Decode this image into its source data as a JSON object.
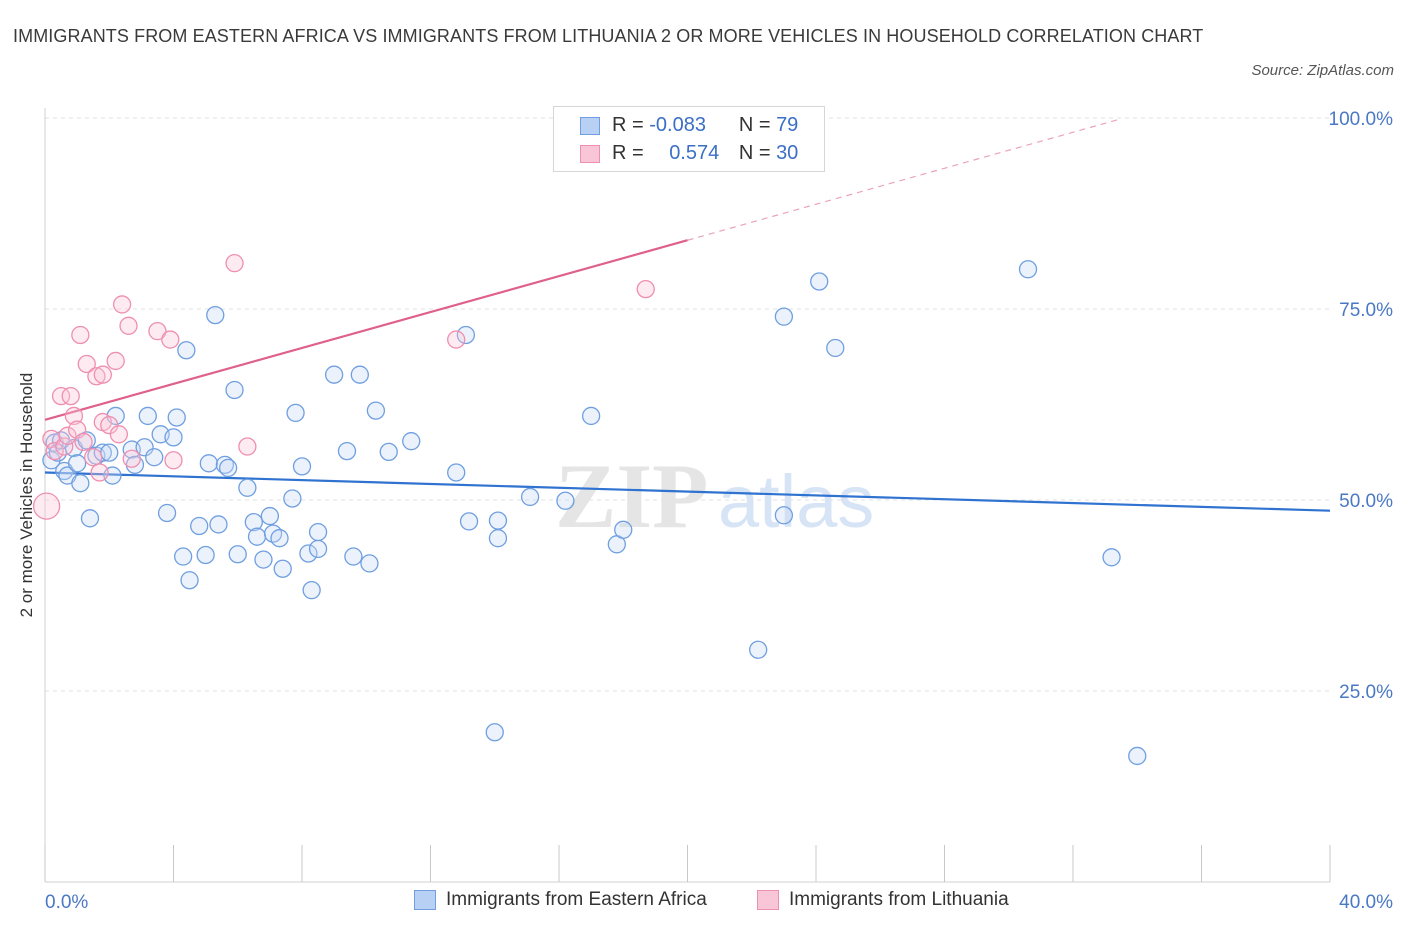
{
  "title": "IMMIGRANTS FROM EASTERN AFRICA VS IMMIGRANTS FROM LITHUANIA 2 OR MORE VEHICLES IN HOUSEHOLD CORRELATION CHART",
  "source": "Source: ZipAtlas.com",
  "watermark": {
    "zip": "ZIP",
    "atlas": "atlas"
  },
  "legend": {
    "series1": {
      "r_label": "R =",
      "r_value": "-0.083",
      "n_label": "N =",
      "n_value": "79"
    },
    "series2": {
      "r_label": "R =",
      "r_value": "0.574",
      "n_label": "N =",
      "n_value": "30"
    }
  },
  "chart_data": {
    "type": "scatter",
    "title": "IMMIGRANTS FROM EASTERN AFRICA VS IMMIGRANTS FROM LITHUANIA 2 OR MORE VEHICLES IN HOUSEHOLD CORRELATION CHART",
    "xlabel": "",
    "ylabel": "2 or more Vehicles in Household",
    "xlim": [
      0,
      40
    ],
    "ylim": [
      0,
      100
    ],
    "x_tick_labels": [
      "0.0%",
      "40.0%"
    ],
    "y_ticks": [
      25,
      50,
      75,
      100
    ],
    "y_tick_labels": [
      "25.0%",
      "50.0%",
      "75.0%",
      "100.0%"
    ],
    "grid": true,
    "legend_position": "top-center",
    "colors": {
      "eastern_africa": "#6f9fe0",
      "lithuania": "#ef8fb0",
      "blue_line": "#2f72d0",
      "pink_line": "#e0608c"
    },
    "series": [
      {
        "name": "Immigrants from Eastern Africa",
        "color": "#6f9fe0",
        "points": [
          [
            0.2,
            55.2
          ],
          [
            0.3,
            57.5
          ],
          [
            0.4,
            56.2
          ],
          [
            0.5,
            57.8
          ],
          [
            0.6,
            53.8
          ],
          [
            0.7,
            53.2
          ],
          [
            0.9,
            56.8
          ],
          [
            1.0,
            54.8
          ],
          [
            1.1,
            52.2
          ],
          [
            1.3,
            57.8
          ],
          [
            1.4,
            47.6
          ],
          [
            1.6,
            55.8
          ],
          [
            1.8,
            56.2
          ],
          [
            2.0,
            56.2
          ],
          [
            2.1,
            53.2
          ],
          [
            2.2,
            61.0
          ],
          [
            2.7,
            56.6
          ],
          [
            2.8,
            54.6
          ],
          [
            3.1,
            56.9
          ],
          [
            3.2,
            61.0
          ],
          [
            3.4,
            55.6
          ],
          [
            3.6,
            58.6
          ],
          [
            3.8,
            48.3
          ],
          [
            4.0,
            58.2
          ],
          [
            4.1,
            60.8
          ],
          [
            4.3,
            42.6
          ],
          [
            4.4,
            69.6
          ],
          [
            4.5,
            39.5
          ],
          [
            4.8,
            46.6
          ],
          [
            5.0,
            42.8
          ],
          [
            5.1,
            54.8
          ],
          [
            5.3,
            74.2
          ],
          [
            5.4,
            46.8
          ],
          [
            5.6,
            54.6
          ],
          [
            5.7,
            54.2
          ],
          [
            5.9,
            64.4
          ],
          [
            6.0,
            42.9
          ],
          [
            6.3,
            51.6
          ],
          [
            6.5,
            47.1
          ],
          [
            6.6,
            45.2
          ],
          [
            6.8,
            42.2
          ],
          [
            7.0,
            47.9
          ],
          [
            7.1,
            45.6
          ],
          [
            7.3,
            45.0
          ],
          [
            7.4,
            41.0
          ],
          [
            7.7,
            50.2
          ],
          [
            7.8,
            61.4
          ],
          [
            8.0,
            54.4
          ],
          [
            8.2,
            43.0
          ],
          [
            8.3,
            38.2
          ],
          [
            8.5,
            43.6
          ],
          [
            8.5,
            45.8
          ],
          [
            9.0,
            66.4
          ],
          [
            9.4,
            56.4
          ],
          [
            9.6,
            42.6
          ],
          [
            9.8,
            66.4
          ],
          [
            10.1,
            41.7
          ],
          [
            10.3,
            61.7
          ],
          [
            10.7,
            56.3
          ],
          [
            11.4,
            57.7
          ],
          [
            12.8,
            53.6
          ],
          [
            13.1,
            71.6
          ],
          [
            13.2,
            47.2
          ],
          [
            14.1,
            47.3
          ],
          [
            14.1,
            45.0
          ],
          [
            15.1,
            50.4
          ],
          [
            16.2,
            49.9
          ],
          [
            17.0,
            61.0
          ],
          [
            17.8,
            44.2
          ],
          [
            18.0,
            46.1
          ],
          [
            14.0,
            19.6
          ],
          [
            22.2,
            30.4
          ],
          [
            23.0,
            48.0
          ],
          [
            23.0,
            74.0
          ],
          [
            24.1,
            78.6
          ],
          [
            24.6,
            69.9
          ],
          [
            30.6,
            80.2
          ],
          [
            33.2,
            42.5
          ],
          [
            34.0,
            16.5
          ]
        ]
      },
      {
        "name": "Immigrants from Lithuania",
        "color": "#ef8fb0",
        "points": [
          [
            0.05,
            49.2
          ],
          [
            0.2,
            58.0
          ],
          [
            0.3,
            56.4
          ],
          [
            0.5,
            63.6
          ],
          [
            0.6,
            57.0
          ],
          [
            0.7,
            58.4
          ],
          [
            0.8,
            63.6
          ],
          [
            0.9,
            61.0
          ],
          [
            1.0,
            59.2
          ],
          [
            1.1,
            71.6
          ],
          [
            1.2,
            57.6
          ],
          [
            1.3,
            67.8
          ],
          [
            1.5,
            55.6
          ],
          [
            1.6,
            66.2
          ],
          [
            1.7,
            53.6
          ],
          [
            1.8,
            60.2
          ],
          [
            1.8,
            66.4
          ],
          [
            2.0,
            59.8
          ],
          [
            2.2,
            68.2
          ],
          [
            2.3,
            58.6
          ],
          [
            2.4,
            75.6
          ],
          [
            2.6,
            72.8
          ],
          [
            2.7,
            55.4
          ],
          [
            3.5,
            72.1
          ],
          [
            3.9,
            71.0
          ],
          [
            4.0,
            55.2
          ],
          [
            5.9,
            81.0
          ],
          [
            6.3,
            57.0
          ],
          [
            12.8,
            71.0
          ],
          [
            18.7,
            77.6
          ]
        ]
      }
    ],
    "trend_lines": [
      {
        "series": "Immigrants from Eastern Africa",
        "x": [
          0,
          40
        ],
        "y": [
          53.6,
          48.6
        ]
      },
      {
        "series": "Immigrants from Lithuania",
        "x": [
          0,
          20
        ],
        "y": [
          60.5,
          84.0
        ],
        "dashed_extension": {
          "x": [
            20,
            33.5
          ],
          "y": [
            84.0,
            99.9
          ]
        }
      }
    ]
  },
  "bottom_legend": {
    "series1": "Immigrants from Eastern Africa",
    "series2": "Immigrants from Lithuania"
  }
}
